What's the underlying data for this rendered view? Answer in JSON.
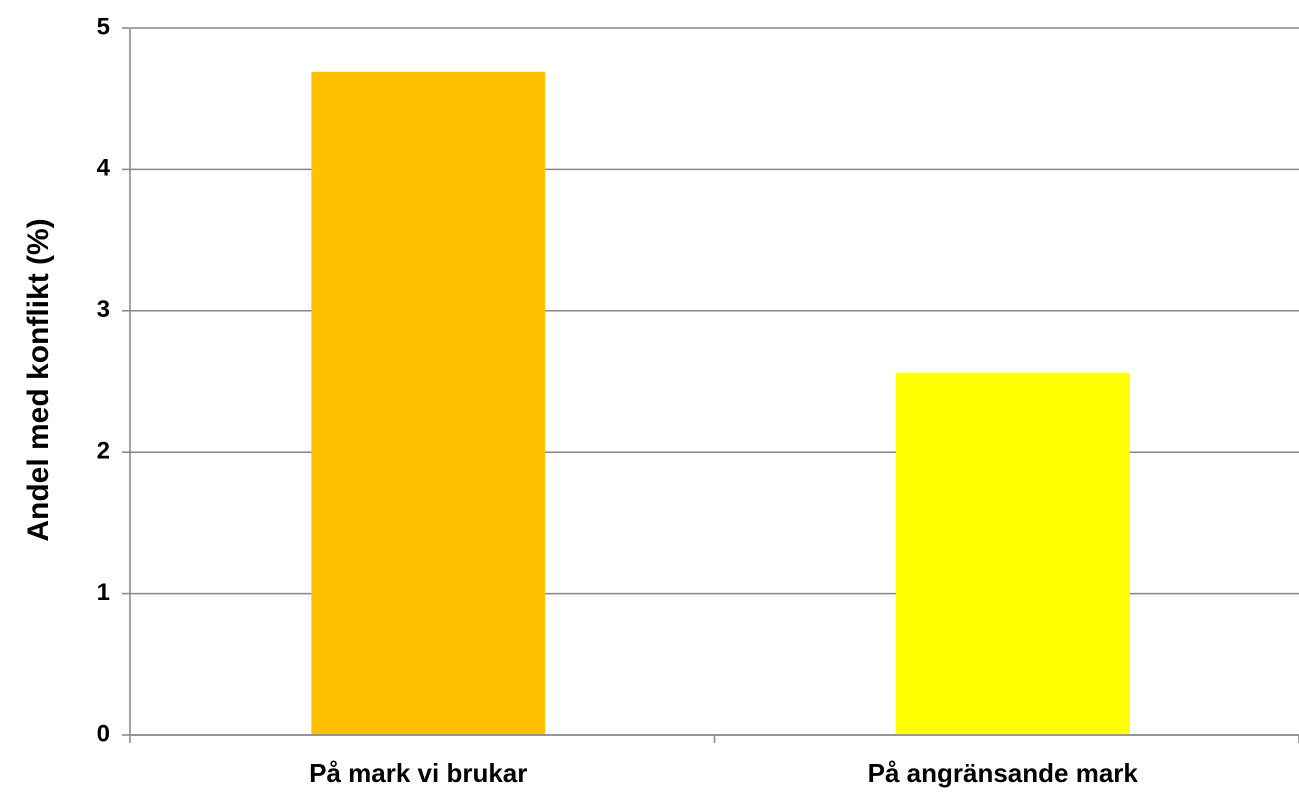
{
  "chart_data": {
    "type": "bar",
    "y_label": "Andel med konflikt (%)",
    "categories": [
      "På mark vi brukar",
      "På angränsande mark"
    ],
    "values": [
      4.69,
      2.56
    ],
    "colors": [
      "#FFC000",
      "#FFFF00"
    ],
    "ylim": [
      0,
      5
    ],
    "yticks": [
      0,
      1,
      2,
      3,
      4,
      5
    ],
    "grid": true
  }
}
